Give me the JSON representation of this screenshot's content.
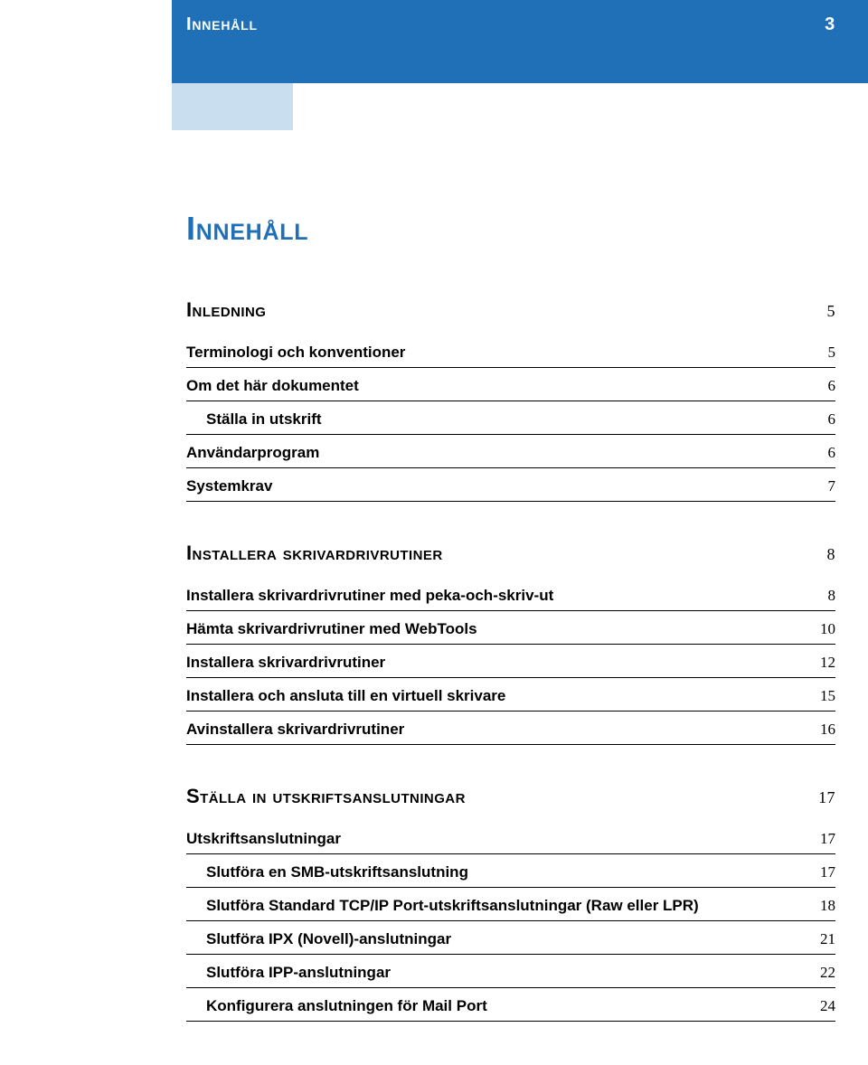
{
  "header": {
    "running_title": "Innehåll",
    "page_number": "3",
    "strip_color": "#2070b8",
    "mini_box_color": "#c9dff0"
  },
  "main_title": "Innehåll",
  "title_color": "#2070b8",
  "sections": [
    {
      "title": "Inledning",
      "page": "5",
      "entries": [
        {
          "label": "Terminologi och konventioner",
          "page": "5",
          "indent": false
        },
        {
          "label": "Om det här dokumentet",
          "page": "6",
          "indent": false
        },
        {
          "label": "Ställa in utskrift",
          "page": "6",
          "indent": true
        },
        {
          "label": "Användarprogram",
          "page": "6",
          "indent": false
        },
        {
          "label": "Systemkrav",
          "page": "7",
          "indent": false
        }
      ]
    },
    {
      "title": "Installera skrivardrivrutiner",
      "page": "8",
      "entries": [
        {
          "label": "Installera skrivardrivrutiner med peka-och-skriv-ut",
          "page": "8",
          "indent": false
        },
        {
          "label": "Hämta skrivardrivrutiner med WebTools",
          "page": "10",
          "indent": false
        },
        {
          "label": "Installera skrivardrivrutiner",
          "page": "12",
          "indent": false
        },
        {
          "label": "Installera och ansluta till en virtuell skrivare",
          "page": "15",
          "indent": false
        },
        {
          "label": "Avinstallera skrivardrivrutiner",
          "page": "16",
          "indent": false
        }
      ]
    },
    {
      "title": "Ställa in utskriftsanslutningar",
      "page": "17",
      "entries": [
        {
          "label": "Utskriftsanslutningar",
          "page": "17",
          "indent": false
        },
        {
          "label": "Slutföra en SMB-utskriftsanslutning",
          "page": "17",
          "indent": true
        },
        {
          "label": "Slutföra Standard TCP/IP Port-utskriftsanslutningar (Raw eller LPR)",
          "page": "18",
          "indent": true
        },
        {
          "label": "Slutföra IPX (Novell)-anslutningar",
          "page": "21",
          "indent": true
        },
        {
          "label": "Slutföra IPP-anslutningar",
          "page": "22",
          "indent": true
        },
        {
          "label": "Konfigurera anslutningen för Mail Port",
          "page": "24",
          "indent": true
        }
      ]
    }
  ]
}
